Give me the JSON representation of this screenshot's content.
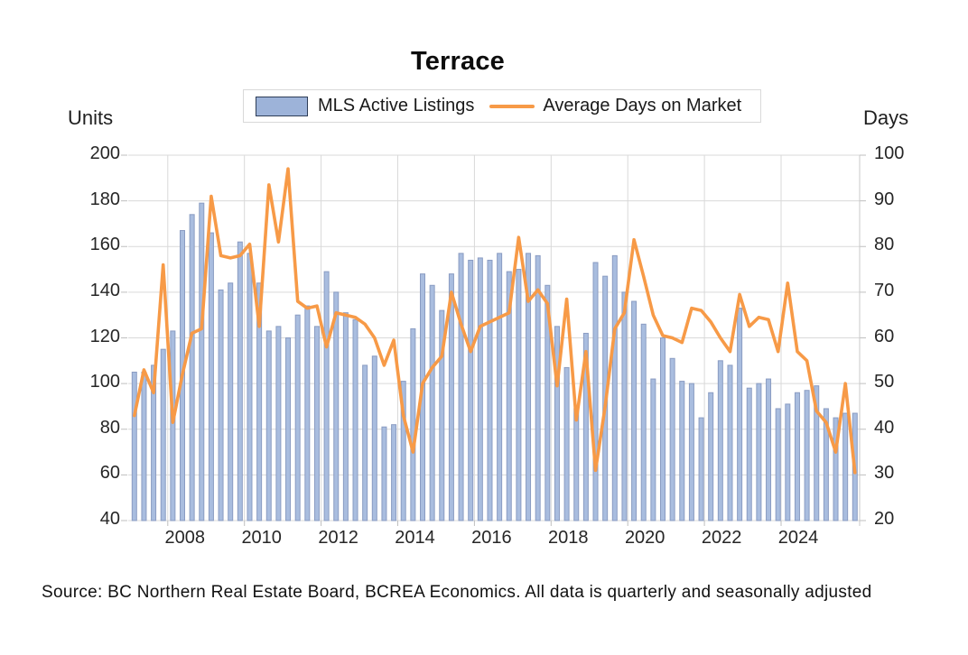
{
  "title": "Terrace",
  "source": "Source: BC Northern Real Estate Board, BCREA Economics. All data is quarterly and seasonally adjusted",
  "legend": {
    "bar_label": "MLS Active Listings",
    "line_label": "Average Days on Market"
  },
  "colors": {
    "bar_fill": "#a9bddf",
    "bar_border": "#8a9cc2",
    "swatch_fill": "#9db3d9",
    "swatch_border": "#2e3d57",
    "line": "#f79a47",
    "grid": "#d9d9d9",
    "axis_line": "#c9c9c9",
    "tick": "#bfbfbf",
    "text": "#262626"
  },
  "chart_data": {
    "type": "combo-bar-line",
    "title": "Terrace",
    "x": {
      "frequency": "quarterly",
      "start": "2007-Q1",
      "end": "2025-Q4",
      "points": 76
    },
    "x_axis": {
      "year_labels": [
        "2008",
        "2010",
        "2012",
        "2014",
        "2016",
        "2018",
        "2020",
        "2022",
        "2024"
      ]
    },
    "left_axis": {
      "title": "Units",
      "min": 40,
      "max": 200,
      "ticks": [
        200,
        180,
        160,
        140,
        120,
        100,
        80,
        60,
        40
      ]
    },
    "right_axis": {
      "title": "Days",
      "min": 20,
      "max": 100,
      "ticks": [
        100,
        90,
        80,
        70,
        60,
        50,
        40,
        30,
        20
      ]
    },
    "grid": true,
    "legend_position": "top",
    "series": [
      {
        "name": "MLS Active Listings",
        "type": "bar",
        "axis": "left",
        "unit": "Units",
        "values": [
          105,
          105,
          108,
          115,
          123,
          167,
          174,
          179,
          166,
          141,
          144,
          162,
          157,
          144,
          123,
          125,
          120,
          130,
          134,
          125,
          149,
          140,
          131,
          128,
          108,
          112,
          81,
          82,
          101,
          124,
          148,
          143,
          132,
          148,
          157,
          154,
          155,
          154,
          157,
          149,
          150,
          157,
          156,
          143,
          125,
          107,
          89,
          122,
          153,
          147,
          156,
          140,
          136,
          126,
          102,
          120,
          111,
          101,
          100,
          85,
          96,
          110,
          108,
          133,
          98,
          100,
          102,
          89,
          91,
          96,
          97,
          99,
          89,
          85,
          87,
          87
        ]
      },
      {
        "name": "Average Days on Market",
        "type": "line",
        "axis": "right",
        "unit": "Days",
        "values": [
          43,
          53,
          48,
          76,
          41.5,
          52,
          61,
          62,
          91,
          78,
          77.5,
          78,
          80.5,
          62.5,
          93.5,
          81,
          97,
          68,
          66.5,
          67,
          58,
          65.5,
          65,
          64.5,
          63,
          60,
          54,
          59.5,
          43,
          35,
          50,
          53.5,
          56,
          70,
          63,
          57,
          62.5,
          63.5,
          64.5,
          65.5,
          82,
          68,
          70.5,
          67.5,
          49.5,
          68.5,
          42,
          57,
          31,
          45,
          62,
          65.5,
          81.5,
          73.5,
          65,
          60.5,
          60,
          59,
          66.5,
          66,
          63.5,
          60,
          57,
          69.5,
          62.5,
          64.5,
          64,
          57,
          72,
          57,
          55,
          44,
          41.5,
          35,
          50,
          30.5
        ]
      }
    ]
  }
}
